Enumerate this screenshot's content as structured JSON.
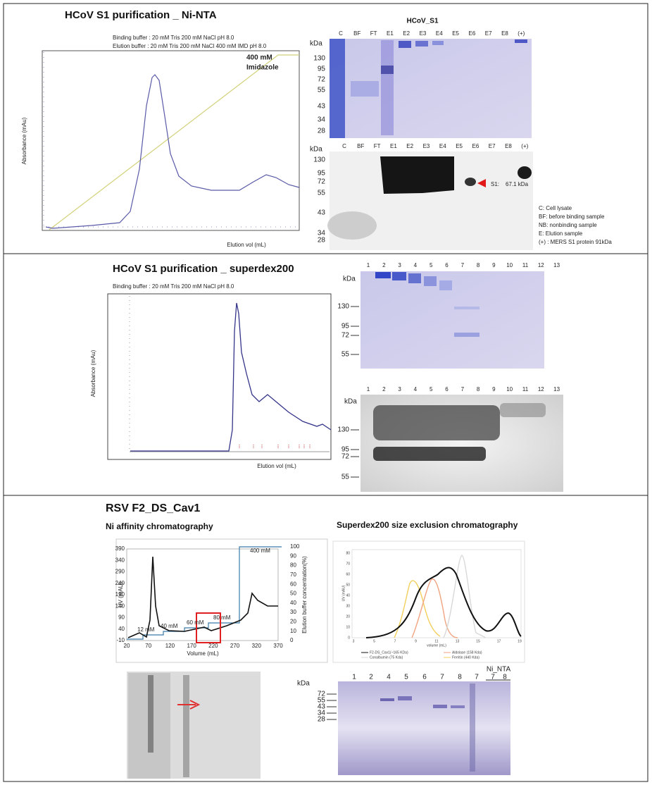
{
  "ni_nta": {
    "title": "HCoV S1 purification _ Ni-NTA",
    "buffers": [
      "Binding buffer : 20 mM Tris 200 mM NaCl pH 8.0",
      "Elution buffer : 20 mM Tris 200 mM NaCl 400 mM IMD pH 8.0"
    ],
    "annotation": [
      "400 mM",
      "Imidazole"
    ],
    "y_label": "Absorbance (mAu)",
    "x_label": "Elution vol (mL)",
    "gel": {
      "title": "HCoV_S1",
      "unit": "kDa",
      "lanes": [
        "C",
        "BF",
        "FT",
        "E1",
        "E2",
        "E3",
        "E4",
        "E5",
        "E6",
        "E7",
        "E8",
        "(+)"
      ],
      "markers": [
        130,
        95,
        72,
        55,
        43,
        34,
        28
      ]
    },
    "blot": {
      "unit": "kDa",
      "lanes": [
        "C",
        "BF",
        "FT",
        "E1",
        "E2",
        "E3",
        "E4",
        "E5",
        "E6",
        "E7",
        "E8",
        "(+)"
      ],
      "markers": [
        130,
        95,
        72,
        55,
        43,
        34,
        28
      ],
      "band_label": [
        "S1:",
        "67.1 kDa"
      ]
    },
    "legend": [
      "C: Cell lysate",
      "BF: before binding sample",
      "NB: nonbinding sample",
      "E: Elution sample",
      "(+) : MERS S1 protein 91kDa"
    ]
  },
  "superdex": {
    "title": "HCoV S1 purification _ superdex200",
    "buffer": "Binding buffer : 20 mM Tris 200 mM NaCl pH 8.0",
    "y_label": "Absorbance (mAu)",
    "x_label": "Elution vol (mL)",
    "gel": {
      "unit": "kDa",
      "lanes": [
        "1",
        "2",
        "3",
        "4",
        "5",
        "6",
        "7",
        "8",
        "9",
        "10",
        "11",
        "12",
        "13"
      ],
      "markers": [
        130,
        95,
        72,
        55
      ]
    },
    "blot": {
      "unit": "kDa",
      "lanes": [
        "1",
        "2",
        "3",
        "4",
        "5",
        "6",
        "7",
        "8",
        "9",
        "10",
        "11",
        "12",
        "13"
      ],
      "markers": [
        130,
        95,
        72,
        55
      ]
    }
  },
  "rsv": {
    "title": "RSV F2_DS_Cav1",
    "ni": {
      "title": "Ni affinity chromatography",
      "y_label": "UV (mAU)",
      "x_label": "Volume (mL)",
      "y2_label": "Elution buffer concentration(%)",
      "yticks": [
        390,
        340,
        290,
        240,
        190,
        140,
        90,
        40,
        -10
      ],
      "xticks": [
        20,
        70,
        120,
        170,
        220,
        270,
        320,
        370
      ],
      "y2ticks": [
        100,
        90,
        80,
        70,
        60,
        50,
        40,
        30,
        20,
        10,
        0
      ],
      "steps": [
        "12 mM",
        "40 mM",
        "60 mM",
        "80 mM",
        "400 mM"
      ]
    },
    "sec": {
      "title": "Superdex200 size exclusion chromatography",
      "y_label": "UV (mAU)",
      "x_label": "volume (mL)",
      "yticks": [
        80,
        70,
        60,
        50,
        40,
        30,
        20,
        10,
        0
      ],
      "xticks": [
        3,
        5,
        7,
        9,
        11,
        13,
        15,
        17,
        19
      ],
      "legend": [
        "F2-DS_Cav1(~165 KDa)",
        "Aldolase (158 Kda)",
        "Conalbumin (75 Kda)",
        "Ferritin (440 Kda)"
      ]
    },
    "gel": {
      "unit": "kDa",
      "lanes": [
        "1",
        "2",
        "4",
        "5",
        "6",
        "7",
        "8",
        "7"
      ],
      "ni_label": "Ni_NTA",
      "ni_lanes": [
        "7",
        "8"
      ],
      "markers": [
        72,
        55,
        43,
        34,
        28
      ]
    }
  }
}
